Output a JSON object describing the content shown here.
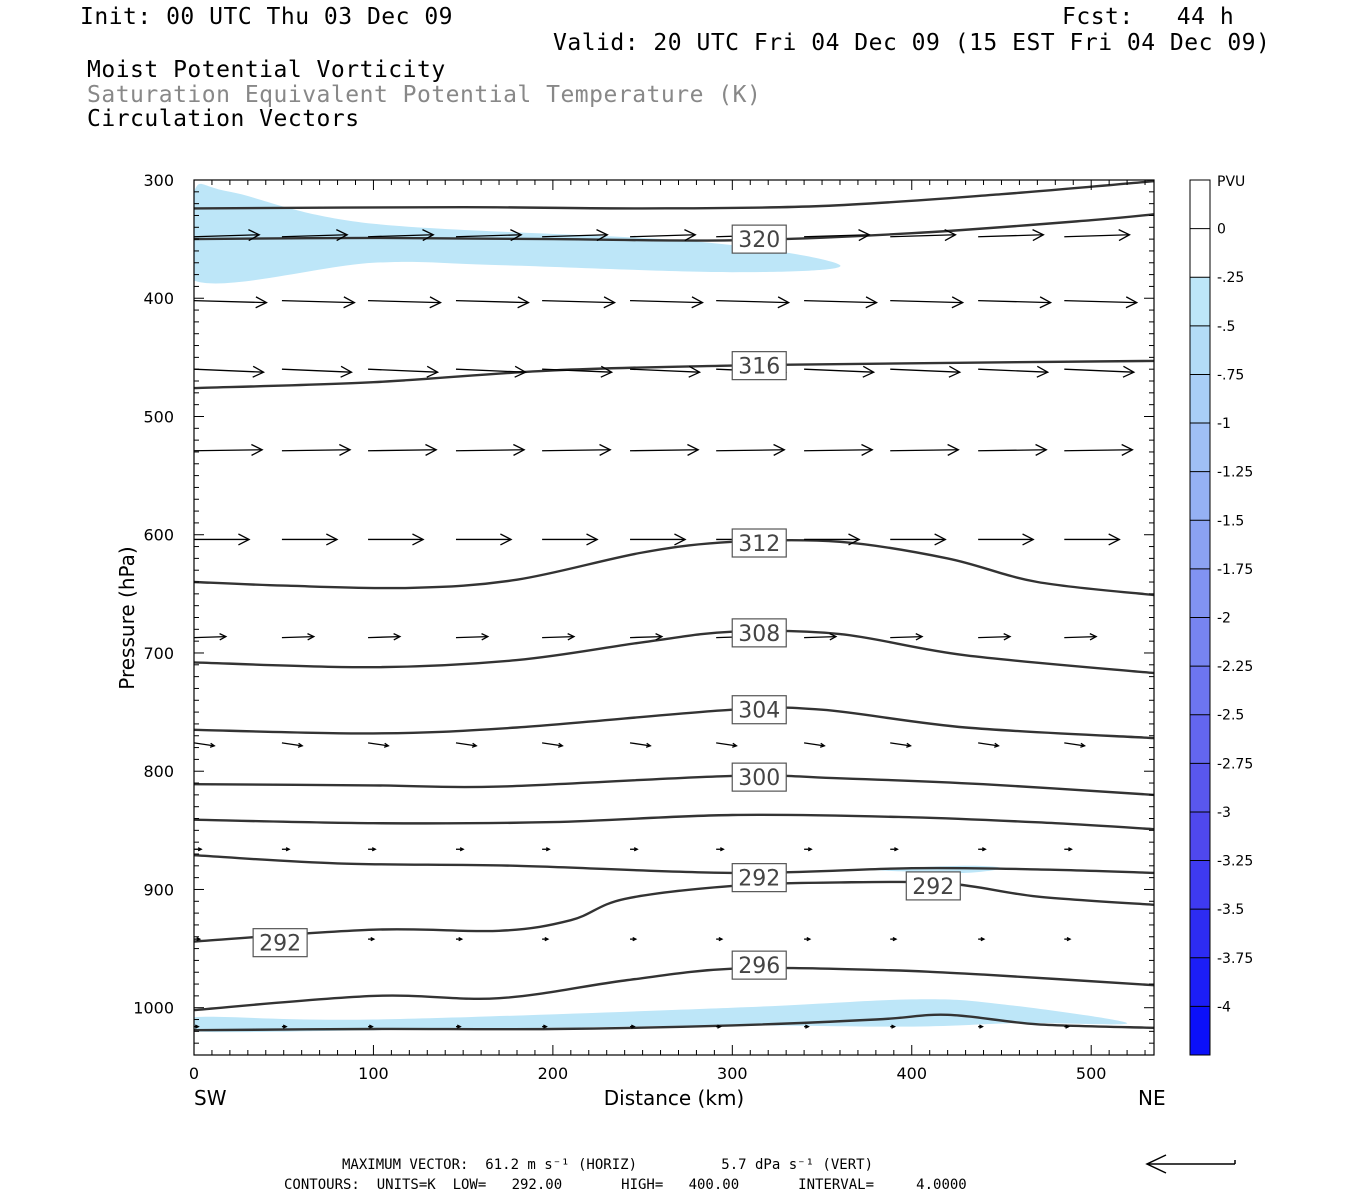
{
  "header": {
    "init": "Init: 00 UTC Thu 03 Dec 09",
    "fcst": "Fcst:   44 h",
    "valid": "Valid: 20 UTC Fri 04 Dec 09 (15 EST Fri 04 Dec 09)",
    "field1": "Moist Potential Vorticity",
    "field2": "Saturation Equivalent Potential Temperature (K)",
    "field3": "Circulation Vectors"
  },
  "footer": {
    "max_vector": "MAXIMUM VECTOR:  61.2 m s⁻¹ (HORIZ)          5.7 dPa s⁻¹ (VERT)",
    "contours": "CONTOURS:  UNITS=K  LOW=   292.00       HIGH=   400.00       INTERVAL=     4.0000"
  },
  "colors": {
    "mpv_fill": "#bde6f8",
    "contour": "#333333",
    "vector": "#000000",
    "label_border": "#555555"
  },
  "chart_data": {
    "type": "contour",
    "xlabel": "Distance (km)",
    "ylabel": "Pressure (hPa)",
    "x_left_label": "SW",
    "x_right_label": "NE",
    "xlim": [
      0,
      535
    ],
    "ylim": [
      1040,
      300
    ],
    "x_ticks": [
      0,
      100,
      200,
      300,
      400,
      500
    ],
    "y_ticks": [
      300,
      400,
      500,
      600,
      700,
      800,
      900,
      1000
    ],
    "contour_labels": [
      {
        "text": "320",
        "x": 315,
        "p": 350
      },
      {
        "text": "316",
        "x": 315,
        "p": 457
      },
      {
        "text": "312",
        "x": 315,
        "p": 607
      },
      {
        "text": "308",
        "x": 315,
        "p": 683
      },
      {
        "text": "304",
        "x": 315,
        "p": 748
      },
      {
        "text": "300",
        "x": 315,
        "p": 805
      },
      {
        "text": "292",
        "x": 315,
        "p": 890
      },
      {
        "text": "292",
        "x": 412,
        "p": 897
      },
      {
        "text": "292",
        "x": 48,
        "p": 945
      },
      {
        "text": "296",
        "x": 315,
        "p": 964
      }
    ],
    "contours": [
      {
        "x": [
          0,
          150,
          250,
          350,
          450,
          535
        ],
        "p": [
          324,
          323,
          324,
          322,
          312,
          301
        ]
      },
      {
        "x": [
          0,
          100,
          200,
          300,
          400,
          500,
          535
        ],
        "p": [
          350,
          349,
          350,
          351,
          345,
          334,
          329
        ]
      },
      {
        "x": [
          0,
          100,
          200,
          300,
          400,
          535
        ],
        "p": [
          476,
          471,
          461,
          457,
          455,
          453
        ]
      },
      {
        "x": [
          0,
          50,
          120,
          180,
          250,
          300,
          360,
          420,
          470,
          535
        ],
        "p": [
          640,
          643,
          645,
          638,
          615,
          606,
          606,
          620,
          640,
          651
        ]
      },
      {
        "x": [
          0,
          100,
          180,
          250,
          300,
          360,
          430,
          535
        ],
        "p": [
          708,
          712,
          706,
          691,
          682,
          684,
          702,
          717
        ]
      },
      {
        "x": [
          0,
          100,
          180,
          300,
          350,
          430,
          535
        ],
        "p": [
          765,
          768,
          763,
          748,
          748,
          763,
          772
        ]
      },
      {
        "x": [
          0,
          100,
          170,
          300,
          360,
          440,
          535
        ],
        "p": [
          811,
          812,
          813,
          804,
          806,
          811,
          820
        ]
      },
      {
        "x": [
          0,
          100,
          200,
          300,
          400,
          480,
          535
        ],
        "p": [
          841,
          844,
          843,
          837,
          839,
          844,
          849
        ]
      },
      {
        "x": [
          0,
          80,
          180,
          300,
          400,
          470,
          535
        ],
        "p": [
          871,
          878,
          880,
          886,
          882,
          883,
          886
        ]
      },
      {
        "x": [
          0,
          100,
          170,
          210,
          240,
          300,
          360,
          420,
          470,
          535
        ],
        "p": [
          944,
          934,
          935,
          926,
          908,
          897,
          894,
          895,
          906,
          913
        ]
      },
      {
        "x": [
          0,
          100,
          170,
          240,
          300,
          380,
          440,
          535
        ],
        "p": [
          1002,
          990,
          992,
          977,
          967,
          968,
          972,
          981
        ]
      },
      {
        "x": [
          0,
          100,
          200,
          300,
          380,
          420,
          470,
          535
        ],
        "p": [
          1019,
          1018,
          1018,
          1015,
          1010,
          1006,
          1014,
          1017
        ]
      }
    ],
    "mpv_regions": [
      {
        "x": [
          0,
          20,
          100,
          280,
          360,
          300,
          170,
          100,
          0
        ],
        "p": [
          310,
          310,
          337,
          352,
          372,
          378,
          372,
          370,
          385
        ]
      },
      {
        "x": [
          0,
          100,
          300,
          400,
          450,
          520,
          460,
          400,
          300,
          200,
          100,
          0
        ],
        "p": [
          1008,
          1010,
          1000,
          993,
          997,
          1013,
          1013,
          1016,
          1015,
          1017,
          1019,
          1020
        ]
      },
      {
        "x": [
          380,
          430,
          450,
          430,
          400
        ],
        "p": [
          883,
          880,
          882,
          886,
          885
        ]
      }
    ],
    "vector_rows": [
      {
        "p": 348,
        "x": [
          0,
          49,
          97,
          146,
          194,
          243,
          291,
          340,
          388,
          437,
          485
        ],
        "u": 45,
        "w": 0.2
      },
      {
        "p": 402,
        "x": [
          0,
          49,
          97,
          146,
          194,
          243,
          291,
          340,
          388,
          437,
          485
        ],
        "u": 50,
        "w": -0.2
      },
      {
        "p": 460,
        "x": [
          0,
          49,
          97,
          146,
          194,
          243,
          291,
          340,
          388,
          437,
          485
        ],
        "u": 48,
        "w": -0.3
      },
      {
        "p": 529,
        "x": [
          0,
          49,
          97,
          146,
          194,
          243,
          291,
          340,
          388,
          437,
          485
        ],
        "u": 47,
        "w": 0.1
      },
      {
        "p": 604,
        "x": [
          0,
          49,
          97,
          146,
          194,
          243,
          291,
          340,
          388,
          437,
          485
        ],
        "u": 38,
        "w": 0.0
      },
      {
        "p": 687,
        "x": [
          0,
          49,
          97,
          146,
          194,
          243,
          291,
          340,
          388,
          437,
          485
        ],
        "u": 22,
        "w": 0.1
      },
      {
        "p": 776,
        "x": [
          0,
          49,
          97,
          146,
          194,
          243,
          291,
          340,
          388,
          437,
          485
        ],
        "u": 14,
        "w": -0.3
      },
      {
        "p": 866,
        "x": [
          0,
          49,
          97,
          146,
          194,
          243,
          291,
          340,
          388,
          437,
          485
        ],
        "u": 5,
        "w": 0.0
      },
      {
        "p": 942,
        "x": [
          0,
          49,
          97,
          146,
          194,
          243,
          291,
          340,
          388,
          437,
          485
        ],
        "u": 4,
        "w": 0.0
      },
      {
        "p": 1016,
        "x": [
          0,
          49,
          97,
          146,
          194,
          243,
          291,
          340,
          388,
          437,
          485
        ],
        "u": 3,
        "w": 0.0
      }
    ],
    "colorbar": {
      "title": "PVU",
      "labels": [
        "0",
        "-.25",
        "-.5",
        "-.75",
        "-1",
        "-1.25",
        "-1.5",
        "-1.75",
        "-2",
        "-2.25",
        "-2.5",
        "-2.75",
        "-3",
        "-3.25",
        "-3.5",
        "-3.75",
        "-4"
      ],
      "colors": [
        "#ffffff",
        "#ffffff",
        "#bde6f8",
        "#b3dcf7",
        "#a9cef6",
        "#9fbff5",
        "#95b1f4",
        "#8ba2f3",
        "#8193f2",
        "#7784f1",
        "#6d75f0",
        "#6366ef",
        "#5957ee",
        "#4f48ed",
        "#3e3af0",
        "#2d2cf3",
        "#1c1ef6",
        "#0b10f9"
      ]
    }
  }
}
